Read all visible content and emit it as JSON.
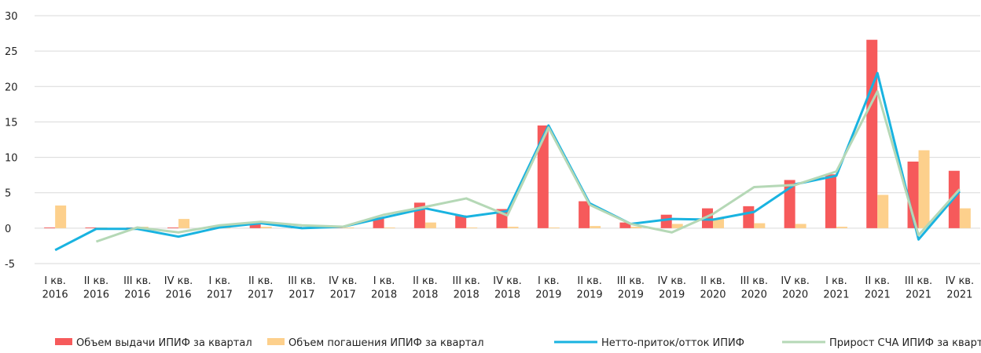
{
  "chart_data": {
    "type": "bar_line",
    "categories": [
      "I кв.\n2016",
      "II кв.\n2016",
      "III кв.\n2016",
      "IV кв.\n2016",
      "I кв.\n2017",
      "II кв.\n2017",
      "III кв.\n2017",
      "IV кв.\n2017",
      "I кв.\n2018",
      "II кв.\n2018",
      "III кв.\n2018",
      "IV кв.\n2018",
      "I кв.\n2019",
      "II кв.\n2019",
      "III кв.\n2019",
      "IV кв.\n2019",
      "II кв.\n2020",
      "III кв.\n2020",
      "IV кв.\n2020",
      "I кв.\n2021",
      "II кв.\n2021",
      "III кв.\n2021",
      "IV кв.\n2021"
    ],
    "series": [
      {
        "name": "Объем выдачи ИПИФ за квартал",
        "type": "bar",
        "color": "#f65a5b",
        "values": [
          0.1,
          0.1,
          0.1,
          0.1,
          0.3,
          0.8,
          0.2,
          0.2,
          1.5,
          3.6,
          1.8,
          2.7,
          14.5,
          3.8,
          0.8,
          1.9,
          2.8,
          3.1,
          6.8,
          7.6,
          26.6,
          9.4,
          8.1
        ]
      },
      {
        "name": "Объем погашения ИПИФ за квартал",
        "type": "bar",
        "color": "#fdd08c",
        "values": [
          3.2,
          0.1,
          0.2,
          1.3,
          0.1,
          0.2,
          0.1,
          0.1,
          0.1,
          0.8,
          0.1,
          0.2,
          0.1,
          0.3,
          0.2,
          0.6,
          1.4,
          0.7,
          0.6,
          0.2,
          4.7,
          11.0,
          2.8
        ]
      },
      {
        "name": "Нетто-приток/отток ИПИФ",
        "type": "line",
        "color": "#19b3e0",
        "values": [
          -3.1,
          -0.1,
          -0.1,
          -1.2,
          0.1,
          0.7,
          0.0,
          0.2,
          1.5,
          2.8,
          1.6,
          2.4,
          14.5,
          3.5,
          0.6,
          1.3,
          1.2,
          2.3,
          6.2,
          7.4,
          21.9,
          -1.6,
          5.2
        ]
      },
      {
        "name": "Прирост СЧА ИПИФ за квартал",
        "type": "line",
        "color": "#b5d8b6",
        "values": [
          null,
          -1.9,
          0.1,
          -0.6,
          0.4,
          0.9,
          0.4,
          0.2,
          1.9,
          3.0,
          4.2,
          1.8,
          14.2,
          3.3,
          0.6,
          -0.6,
          2.0,
          5.8,
          6.1,
          8.0,
          19.3,
          -1.0,
          5.5
        ]
      }
    ],
    "ylim": [
      -5,
      30
    ],
    "yticks": [
      -5,
      0,
      5,
      10,
      15,
      20,
      25,
      30
    ],
    "grid": true,
    "legend": "bottom"
  }
}
